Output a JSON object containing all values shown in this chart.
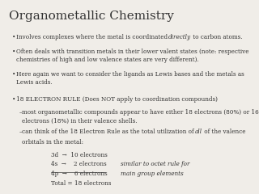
{
  "title": "Organometallic Chemistry",
  "background_color": "#f0ede8",
  "title_fontsize": 11,
  "body_fontsize": 5.2,
  "bullet_points": [
    "Involves complexes where the metal is coordinated directly to carbon atoms.",
    "Often deals with transition metals in their lower valent states (note: respective\nchemistries of high and low valence states are very different).",
    "Here again we want to consider the ligands as Lewis bases and the metals as\nLewis acids."
  ],
  "bullet2_header": "18 ELECTRON RULE (Does NOT apply to coordination compounds)",
  "sub_bullets": [
    "most organometallic compounds appear to have either 18 electrons (80%) or 16\nelectrons (18%) in their valence shells.",
    "can think of the 18 Electron Rule as the total utilization of all of the valence\norbitals in the metal:"
  ],
  "table_lines": [
    [
      "3d  →  10 electrons",
      ""
    ],
    [
      "4s  →    2 electrons",
      "similar to octet rule for"
    ],
    [
      "4p  →    6 electrons",
      "main group elements"
    ],
    [
      "Total = 18 electrons",
      ""
    ]
  ],
  "italic_words_bullet1": [
    "directly"
  ],
  "italic_words_18e": [
    "all"
  ],
  "italic_words_similar": [
    "similar to octet rule for",
    "main group elements"
  ]
}
